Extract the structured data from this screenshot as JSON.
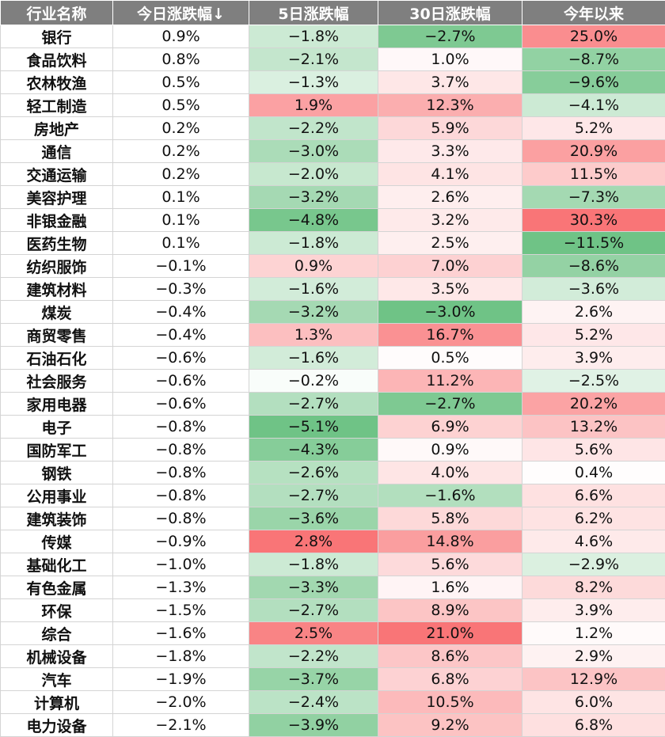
{
  "chart_data": {
    "type": "table",
    "colors": {
      "positive": "#f8696b",
      "negative": "#63be7b",
      "neutral": "#ffffff"
    },
    "columns": [
      "行业名称",
      "今日涨跌幅↓",
      "5日涨跌幅",
      "30日涨跌幅",
      "今年以来"
    ],
    "rows": [
      {
        "name": "银行",
        "values": [
          "0.9%",
          "−1.8%",
          "−2.7%",
          "25.0%"
        ]
      },
      {
        "name": "食品饮料",
        "values": [
          "0.8%",
          "−2.1%",
          "1.0%",
          "−8.7%"
        ]
      },
      {
        "name": "农林牧渔",
        "values": [
          "0.5%",
          "−1.3%",
          "3.7%",
          "−9.6%"
        ]
      },
      {
        "name": "轻工制造",
        "values": [
          "0.5%",
          "1.9%",
          "12.3%",
          "−4.1%"
        ]
      },
      {
        "name": "房地产",
        "values": [
          "0.2%",
          "−2.2%",
          "5.9%",
          "5.2%"
        ]
      },
      {
        "name": "通信",
        "values": [
          "0.2%",
          "−3.0%",
          "3.3%",
          "20.9%"
        ]
      },
      {
        "name": "交通运输",
        "values": [
          "0.2%",
          "−2.0%",
          "4.1%",
          "11.5%"
        ]
      },
      {
        "name": "美容护理",
        "values": [
          "0.1%",
          "−3.2%",
          "2.6%",
          "−7.3%"
        ]
      },
      {
        "name": "非银金融",
        "values": [
          "0.1%",
          "−4.8%",
          "3.2%",
          "30.3%"
        ]
      },
      {
        "name": "医药生物",
        "values": [
          "0.1%",
          "−1.8%",
          "2.5%",
          "−11.5%"
        ]
      },
      {
        "name": "纺织服饰",
        "values": [
          "−0.1%",
          "0.9%",
          "7.0%",
          "−8.6%"
        ]
      },
      {
        "name": "建筑材料",
        "values": [
          "−0.3%",
          "−1.6%",
          "3.5%",
          "−3.6%"
        ]
      },
      {
        "name": "煤炭",
        "values": [
          "−0.4%",
          "−3.2%",
          "−3.0%",
          "2.6%"
        ]
      },
      {
        "name": "商贸零售",
        "values": [
          "−0.4%",
          "1.3%",
          "16.7%",
          "5.2%"
        ]
      },
      {
        "name": "石油石化",
        "values": [
          "−0.6%",
          "−1.6%",
          "0.5%",
          "3.9%"
        ]
      },
      {
        "name": "社会服务",
        "values": [
          "−0.6%",
          "−0.2%",
          "11.2%",
          "−2.5%"
        ]
      },
      {
        "name": "家用电器",
        "values": [
          "−0.6%",
          "−2.7%",
          "−2.7%",
          "20.2%"
        ]
      },
      {
        "name": "电子",
        "values": [
          "−0.8%",
          "−5.1%",
          "6.9%",
          "13.2%"
        ]
      },
      {
        "name": "国防军工",
        "values": [
          "−0.8%",
          "−4.3%",
          "0.9%",
          "5.6%"
        ]
      },
      {
        "name": "钢铁",
        "values": [
          "−0.8%",
          "−2.6%",
          "4.0%",
          "0.4%"
        ]
      },
      {
        "name": "公用事业",
        "values": [
          "−0.8%",
          "−2.7%",
          "−1.6%",
          "6.6%"
        ]
      },
      {
        "name": "建筑装饰",
        "values": [
          "−0.8%",
          "−3.6%",
          "5.8%",
          "6.2%"
        ]
      },
      {
        "name": "传媒",
        "values": [
          "−0.9%",
          "2.8%",
          "14.8%",
          "4.6%"
        ]
      },
      {
        "name": "基础化工",
        "values": [
          "−1.0%",
          "−1.8%",
          "5.6%",
          "−2.9%"
        ]
      },
      {
        "name": "有色金属",
        "values": [
          "−1.3%",
          "−3.3%",
          "1.6%",
          "8.2%"
        ]
      },
      {
        "name": "环保",
        "values": [
          "−1.5%",
          "−2.7%",
          "8.9%",
          "3.9%"
        ]
      },
      {
        "name": "综合",
        "values": [
          "−1.6%",
          "2.5%",
          "21.0%",
          "1.2%"
        ]
      },
      {
        "name": "机械设备",
        "values": [
          "−1.8%",
          "−2.2%",
          "8.6%",
          "2.9%"
        ]
      },
      {
        "name": "汽车",
        "values": [
          "−1.9%",
          "−3.7%",
          "6.8%",
          "12.9%"
        ]
      },
      {
        "name": "计算机",
        "values": [
          "−2.0%",
          "−2.4%",
          "10.5%",
          "6.0%"
        ]
      },
      {
        "name": "电力设备",
        "values": [
          "−2.1%",
          "−3.9%",
          "9.2%",
          "6.8%"
        ]
      }
    ]
  }
}
